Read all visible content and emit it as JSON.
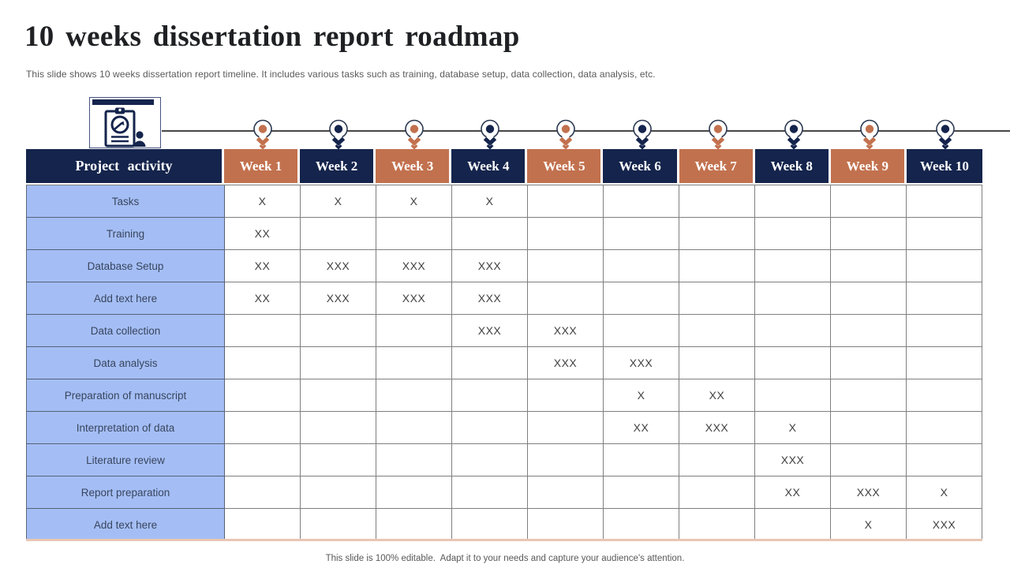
{
  "slide": {
    "title": "10 weeks dissertation report roadmap",
    "subtitle": "This slide shows 10 weeks dissertation report timeline. It includes various tasks such as training, database setup, data collection, data analysis, etc.",
    "footer": "This slide is 100% editable.  Adapt it to your needs and capture your audience's attention."
  },
  "colors": {
    "navy": "#14244c",
    "orange": "#c2714e",
    "light_blue": "#a4bef5",
    "salmon_accent": "#e9c6b4",
    "ring_outline": "#2b3850"
  },
  "icon": {
    "name": "clipboard-clock-person-icon"
  },
  "timeline": {
    "markers": [
      {
        "week": "Week 1",
        "color": "orange"
      },
      {
        "week": "Week 2",
        "color": "navy"
      },
      {
        "week": "Week 3",
        "color": "orange"
      },
      {
        "week": "Week 4",
        "color": "navy"
      },
      {
        "week": "Week 5",
        "color": "orange"
      },
      {
        "week": "Week 6",
        "color": "navy"
      },
      {
        "week": "Week 7",
        "color": "orange"
      },
      {
        "week": "Week 8",
        "color": "navy"
      },
      {
        "week": "Week 9",
        "color": "orange"
      },
      {
        "week": "Week 10",
        "color": "navy"
      }
    ]
  },
  "table": {
    "activity_header": "Project activity",
    "week_headers": [
      {
        "label": "Week 1",
        "color": "orange"
      },
      {
        "label": "Week 2",
        "color": "navy"
      },
      {
        "label": "Week 3",
        "color": "orange"
      },
      {
        "label": "Week 4",
        "color": "navy"
      },
      {
        "label": "Week 5",
        "color": "orange"
      },
      {
        "label": "Week 6",
        "color": "navy"
      },
      {
        "label": "Week 7",
        "color": "orange"
      },
      {
        "label": "Week 8",
        "color": "navy"
      },
      {
        "label": "Week 9",
        "color": "orange"
      },
      {
        "label": "Week 10",
        "color": "navy"
      }
    ],
    "rows": [
      {
        "label": "Tasks",
        "cells": [
          "X",
          "X",
          "X",
          "X",
          "",
          "",
          "",
          "",
          "",
          ""
        ]
      },
      {
        "label": "Training",
        "cells": [
          "XX",
          "",
          "",
          "",
          "",
          "",
          "",
          "",
          "",
          ""
        ]
      },
      {
        "label": "Database Setup",
        "cells": [
          "XX",
          "XXX",
          "XXX",
          "XXX",
          "",
          "",
          "",
          "",
          "",
          ""
        ]
      },
      {
        "label": "Add text here",
        "cells": [
          "XX",
          "XXX",
          "XXX",
          "XXX",
          "",
          "",
          "",
          "",
          "",
          ""
        ]
      },
      {
        "label": "Data collection",
        "cells": [
          "",
          "",
          "",
          "XXX",
          "XXX",
          "",
          "",
          "",
          "",
          ""
        ]
      },
      {
        "label": "Data analysis",
        "cells": [
          "",
          "",
          "",
          "",
          "XXX",
          "XXX",
          "",
          "",
          "",
          ""
        ]
      },
      {
        "label": "Preparation of manuscript",
        "cells": [
          "",
          "",
          "",
          "",
          "",
          "X",
          "XX",
          "",
          "",
          ""
        ]
      },
      {
        "label": "Interpretation of data",
        "cells": [
          "",
          "",
          "",
          "",
          "",
          "XX",
          "XXX",
          "X",
          "",
          ""
        ]
      },
      {
        "label": "Literature review",
        "cells": [
          "",
          "",
          "",
          "",
          "",
          "",
          "",
          "XXX",
          "",
          ""
        ]
      },
      {
        "label": "Report preparation",
        "cells": [
          "",
          "",
          "",
          "",
          "",
          "",
          "",
          "XX",
          "XXX",
          "X"
        ]
      },
      {
        "label": "Add text here",
        "cells": [
          "",
          "",
          "",
          "",
          "",
          "",
          "",
          "",
          "X",
          "XXX"
        ]
      }
    ]
  }
}
